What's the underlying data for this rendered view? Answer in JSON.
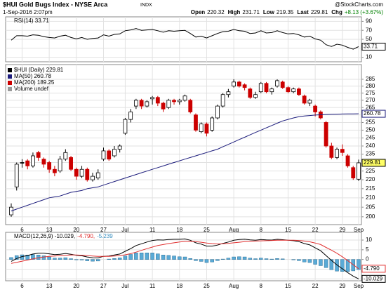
{
  "header": {
    "symbol": "$HUI Gold Bugs Index - NYSE Arca",
    "exchange": "INDX",
    "date": "1-Sep-2016 2:07pm",
    "credit": "@StockCharts.com",
    "quote": [
      {
        "label": "Open",
        "value": "220.32"
      },
      {
        "label": "High",
        "value": "231.71"
      },
      {
        "label": "Low",
        "value": "219.35"
      },
      {
        "label": "Last",
        "value": "229.81"
      },
      {
        "label": "Chg",
        "value": "+8.13 (+3.67%)"
      }
    ]
  },
  "chart_data": [
    {
      "type": "candlestick",
      "log": true,
      "grid": true,
      "up_color": "#000000",
      "down_color": "#cc0000",
      "last_label": "229.81",
      "tag_color": "#ffff66",
      "categories": [
        null,
        null,
        "6",
        null,
        null,
        null,
        null,
        "13",
        null,
        null,
        null,
        null,
        "20",
        null,
        null,
        null,
        null,
        "27",
        null,
        null,
        null,
        "Jul",
        null,
        null,
        null,
        null,
        "11",
        null,
        null,
        null,
        null,
        "18",
        null,
        null,
        null,
        null,
        "25",
        null,
        null,
        null,
        null,
        "Aug",
        null,
        null,
        null,
        null,
        "8",
        null,
        null,
        null,
        null,
        "15",
        null,
        null,
        null,
        null,
        "22",
        null,
        null,
        null,
        null,
        "29",
        null,
        null,
        "Sep"
      ],
      "open": [
        201,
        216,
        230,
        231,
        228,
        236,
        232,
        230,
        226,
        225,
        232,
        233,
        226,
        222,
        226,
        220,
        221,
        232,
        237,
        234,
        238,
        248,
        257,
        266,
        270,
        266,
        271,
        272,
        268,
        265,
        270,
        269,
        270,
        270,
        260,
        249,
        254,
        250,
        258,
        266,
        274,
        280,
        283,
        281,
        278,
        272,
        276,
        282,
        276,
        280,
        283,
        279,
        276,
        278,
        273,
        268,
        266,
        262,
        255,
        240,
        233,
        238,
        234,
        227,
        220.32
      ],
      "high": [
        207,
        230,
        232,
        232,
        236,
        237,
        233,
        231,
        228,
        234,
        238,
        234,
        227,
        228,
        227,
        224,
        226,
        239,
        238,
        240,
        241,
        258,
        264,
        271,
        271,
        270,
        273,
        273,
        269,
        271,
        271,
        271,
        274,
        271,
        261,
        255,
        255,
        259,
        267,
        275,
        278,
        285,
        284,
        282,
        279,
        276,
        283,
        283,
        279,
        285,
        284,
        280,
        279,
        279,
        274,
        271,
        267,
        263,
        256,
        242,
        239,
        241,
        235,
        228,
        231.71
      ],
      "low": [
        200,
        214,
        227,
        226,
        227,
        231,
        227,
        224,
        222,
        224,
        231,
        225,
        220,
        221,
        219,
        219,
        220,
        231,
        231,
        233,
        236,
        247,
        255,
        264,
        264,
        265,
        267,
        266,
        262,
        264,
        267,
        267,
        269,
        261,
        249,
        248,
        246,
        249,
        257,
        265,
        272,
        279,
        279,
        277,
        271,
        271,
        275,
        275,
        274,
        279,
        278,
        275,
        275,
        273,
        267,
        266,
        259,
        257,
        239,
        232,
        232,
        234,
        227,
        220,
        219.35
      ],
      "close": [
        205,
        229,
        230,
        228,
        234,
        233,
        229,
        226,
        224,
        232,
        236,
        226,
        222,
        226,
        220,
        222,
        224,
        237,
        232,
        238,
        240,
        257,
        262,
        270,
        266,
        269,
        272,
        268,
        264,
        270,
        269,
        270,
        273,
        262,
        250,
        254,
        248,
        258,
        266,
        274,
        276,
        283,
        280,
        279,
        272,
        274,
        282,
        276,
        278,
        284,
        279,
        276,
        278,
        274,
        268,
        270,
        262,
        258,
        240,
        233,
        238,
        236,
        228,
        221,
        229.81
      ],
      "ylim": [
        196,
        296
      ],
      "yticks": [
        200,
        205,
        210,
        215,
        220,
        225,
        230,
        235,
        240,
        245,
        250,
        255,
        260,
        265,
        270,
        275,
        280,
        285
      ],
      "legend": [
        {
          "label": "$HUI (Daily) 229.81",
          "color": "#000000"
        },
        {
          "label": "MA(50) 260.78",
          "color": "#1c1c7c"
        },
        {
          "label": "MA(200) 189.25",
          "color": "#cc0000"
        },
        {
          "label": "Volume undef",
          "color": "#999999"
        }
      ],
      "series": [
        {
          "name": "MA(50)",
          "color": "#1c1c7c",
          "last_label": "260.78",
          "values": [
            203,
            204,
            205,
            206,
            207,
            208,
            209,
            210,
            210.5,
            211,
            212,
            213,
            213.5,
            214,
            215,
            215.5,
            216,
            217,
            218,
            219,
            220,
            221,
            222,
            223,
            224,
            225,
            226,
            227,
            228,
            229,
            230,
            231,
            232,
            233,
            234,
            235,
            236,
            237,
            238,
            239.5,
            241,
            242.5,
            244,
            245.5,
            247,
            248.5,
            250,
            251.5,
            253,
            254.5,
            256,
            257,
            258,
            258.8,
            259.3,
            259.6,
            259.9,
            260.1,
            260.3,
            260.4,
            260.5,
            260.6,
            260.65,
            260.7,
            260.78
          ]
        }
      ]
    },
    {
      "type": "line",
      "grid": true,
      "title": "RSI(14) 33.71",
      "ylim": [
        0,
        100
      ],
      "yticks": [
        90,
        70,
        50,
        30,
        10
      ],
      "series": [
        {
          "name": "RSI(14)",
          "color": "#000000",
          "last_label": "33.71",
          "values": [
            48,
            58,
            58,
            57,
            60,
            59,
            56,
            54,
            53,
            57,
            59,
            54,
            51,
            54,
            50,
            52,
            53,
            60,
            57,
            61,
            62,
            69,
            71,
            74,
            70,
            71,
            72,
            69,
            66,
            69,
            68,
            69,
            70,
            63,
            55,
            57,
            53,
            58,
            63,
            67,
            68,
            72,
            69,
            68,
            63,
            64,
            69,
            64,
            65,
            69,
            65,
            62,
            63,
            60,
            55,
            57,
            51,
            48,
            38,
            34,
            39,
            37,
            32,
            28,
            33.71
          ]
        }
      ]
    },
    {
      "type": "line",
      "grid": true,
      "ylim": [
        -11,
        14
      ],
      "yticks": [
        10,
        5,
        0,
        -5,
        -10
      ],
      "legend": [
        {
          "label": "MACD(12,26,9) -10.029,",
          "color": "#000000"
        },
        {
          "label": "-4.790,",
          "color": "#e03030"
        },
        {
          "label": "-5.239",
          "color": "#3a8fc0"
        }
      ],
      "series": [
        {
          "name": "Histogram",
          "kind": "bar",
          "color": "#5aaad6",
          "values": [
            1,
            2,
            2.4,
            2.3,
            2.5,
            2.3,
            1.9,
            1.3,
            0.7,
            0.7,
            0.9,
            0.4,
            -0.2,
            -0.3,
            -0.7,
            -0.9,
            -0.8,
            0,
            0.2,
            0.5,
            0.8,
            1.8,
            2.6,
            3.4,
            3.4,
            3.4,
            3.4,
            2.9,
            2.3,
            2.1,
            1.8,
            1.4,
            1.3,
            0.5,
            -0.6,
            -1,
            -1.6,
            -1.3,
            -0.6,
            0.2,
            0.7,
            1.3,
            1.4,
            1.3,
            0.7,
            0.4,
            0.7,
            0.4,
            0.2,
            0.5,
            0.3,
            0,
            -0.2,
            -0.6,
            -1.3,
            -1.6,
            -2.5,
            -3.2,
            -4.2,
            -5.3,
            -6,
            -6.2,
            -6.2,
            -5.9,
            -5.239
          ]
        },
        {
          "name": "MACD",
          "color": "#000000",
          "last_label": "-10.029",
          "values": [
            -1,
            0.5,
            1.5,
            2,
            2.8,
            3.2,
            3.2,
            2.9,
            2.5,
            2.7,
            3.1,
            2.7,
            2.1,
            1.9,
            1.3,
            0.9,
            0.8,
            1.6,
            1.8,
            2.3,
            2.8,
            4.2,
            5.6,
            7.2,
            8.1,
            9,
            9.8,
            10.1,
            10,
            10.3,
            10.4,
            10.4,
            10.6,
            9.9,
            8.6,
            7.9,
            6.9,
            6.9,
            7.4,
            8.3,
            9,
            9.9,
            10.3,
            10.5,
            10.1,
            9.9,
            10.3,
            10.1,
            10,
            10.4,
            10.2,
            9.9,
            9.7,
            9.2,
            8.2,
            7.5,
            6,
            4.5,
            2,
            -0.5,
            -2.8,
            -4.8,
            -6.8,
            -8.6,
            -10.029
          ]
        },
        {
          "name": "Signal",
          "color": "#e03030",
          "last_label": "-4.790",
          "values": [
            -2,
            -1.5,
            -0.9,
            -0.3,
            0.3,
            0.9,
            1.3,
            1.6,
            1.8,
            2,
            2.2,
            2.3,
            2.3,
            2.2,
            2,
            1.8,
            1.6,
            1.6,
            1.6,
            1.8,
            2,
            2.4,
            3,
            3.8,
            4.7,
            5.6,
            6.4,
            7.2,
            7.7,
            8.2,
            8.6,
            9,
            9.3,
            9.4,
            9.2,
            8.9,
            8.5,
            8.2,
            8,
            8.1,
            8.3,
            8.6,
            8.9,
            9.2,
            9.4,
            9.5,
            9.6,
            9.7,
            9.8,
            9.9,
            9.9,
            9.9,
            9.9,
            9.8,
            9.5,
            9.1,
            8.5,
            7.7,
            6.2,
            4.8,
            3.2,
            1.4,
            -0.6,
            -2.7,
            -4.79
          ]
        }
      ]
    }
  ]
}
